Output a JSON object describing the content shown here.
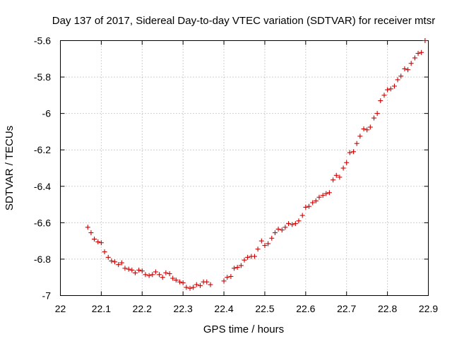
{
  "chart_data": {
    "type": "scatter",
    "title": "Day 137 of 2017, Sidereal Day-to-day VTEC variation (SDTVAR) for receiver mtsr",
    "xlabel": "GPS time / hours",
    "ylabel": "SDTVAR / TECUs",
    "xlim": [
      22,
      22.9
    ],
    "ylim": [
      -7,
      -5.6
    ],
    "xticks": [
      "22",
      "22.1",
      "22.2",
      "22.3",
      "22.4",
      "22.5",
      "22.6",
      "22.7",
      "22.8",
      "22.9"
    ],
    "yticks": [
      "-5.6",
      "-5.8",
      "-6",
      "-6.2",
      "-6.4",
      "-6.6",
      "-6.8",
      "-7"
    ],
    "grid": true,
    "marker": "plus",
    "color": "#cc0000",
    "series": [
      {
        "name": "SDTVAR",
        "x": [
          22.067,
          22.075,
          22.083,
          22.092,
          22.1,
          22.108,
          22.117,
          22.125,
          22.133,
          22.142,
          22.15,
          22.158,
          22.167,
          22.175,
          22.183,
          22.192,
          22.2,
          22.208,
          22.217,
          22.225,
          22.233,
          22.242,
          22.25,
          22.258,
          22.267,
          22.275,
          22.283,
          22.292,
          22.3,
          22.308,
          22.317,
          22.325,
          22.333,
          22.342,
          22.35,
          22.358,
          22.367,
          22.4,
          22.408,
          22.417,
          22.425,
          22.433,
          22.442,
          22.45,
          22.458,
          22.467,
          22.475,
          22.483,
          22.492,
          22.5,
          22.508,
          22.517,
          22.525,
          22.533,
          22.542,
          22.55,
          22.558,
          22.567,
          22.575,
          22.583,
          22.592,
          22.6,
          22.608,
          22.617,
          22.625,
          22.633,
          22.642,
          22.65,
          22.658,
          22.667,
          22.675,
          22.683,
          22.692,
          22.7,
          22.708,
          22.717,
          22.725,
          22.733,
          22.742,
          22.75,
          22.758,
          22.767,
          22.775,
          22.783,
          22.792,
          22.8,
          22.808,
          22.817,
          22.825,
          22.833,
          22.842,
          22.85,
          22.858,
          22.867,
          22.875,
          22.883,
          22.892
        ],
        "y": [
          -6.625,
          -6.655,
          -6.69,
          -6.705,
          -6.71,
          -6.76,
          -6.79,
          -6.81,
          -6.815,
          -6.83,
          -6.82,
          -6.85,
          -6.855,
          -6.86,
          -6.875,
          -6.86,
          -6.865,
          -6.885,
          -6.89,
          -6.885,
          -6.87,
          -6.885,
          -6.9,
          -6.875,
          -6.88,
          -6.905,
          -6.915,
          -6.925,
          -6.93,
          -6.955,
          -6.96,
          -6.955,
          -6.94,
          -6.945,
          -6.925,
          -6.925,
          -6.94,
          -6.92,
          -6.9,
          -6.895,
          -6.85,
          -6.845,
          -6.835,
          -6.805,
          -6.79,
          -6.785,
          -6.785,
          -6.745,
          -6.7,
          -6.725,
          -6.715,
          -6.685,
          -6.655,
          -6.635,
          -6.64,
          -6.625,
          -6.605,
          -6.61,
          -6.605,
          -6.59,
          -6.56,
          -6.515,
          -6.51,
          -6.49,
          -6.48,
          -6.46,
          -6.45,
          -6.44,
          -6.435,
          -6.365,
          -6.34,
          -6.35,
          -6.3,
          -6.27,
          -6.215,
          -6.21,
          -6.165,
          -6.125,
          -6.085,
          -6.09,
          -6.075,
          -6.025,
          -6.0,
          -5.93,
          -5.9,
          -5.87,
          -5.865,
          -5.85,
          -5.815,
          -5.795,
          -5.755,
          -5.76,
          -5.725,
          -5.695,
          -5.67,
          -5.665,
          -5.6
        ]
      }
    ]
  }
}
